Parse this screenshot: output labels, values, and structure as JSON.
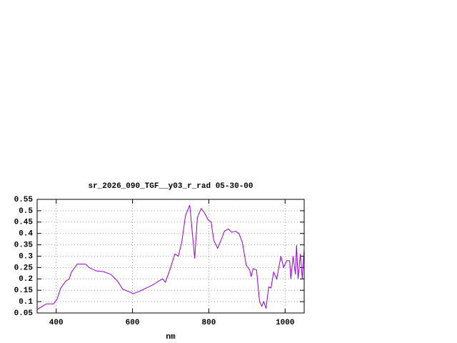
{
  "chart_data": {
    "type": "line",
    "title": "sr_2026_090_TGF__y03_r_rad 05-30-00",
    "x_label": "nm",
    "x": [
      350,
      374,
      393,
      402,
      412,
      425,
      434,
      440,
      455,
      477,
      486,
      505,
      524,
      543,
      561,
      574,
      589,
      602,
      617,
      636,
      655,
      668,
      679,
      686,
      698,
      711,
      720,
      729,
      739,
      750,
      757,
      763,
      770,
      780,
      789,
      798,
      806,
      813,
      823,
      832,
      841,
      851,
      860,
      870,
      879,
      888,
      898,
      907,
      911,
      916,
      925,
      933,
      939,
      944,
      950,
      957,
      963,
      970,
      978,
      989,
      996,
      1004,
      1012,
      1015,
      1021,
      1027,
      1030,
      1034,
      1040,
      1045,
      1050
    ],
    "series": [
      {
        "color": "#9400d3",
        "values": [
          0.065,
          0.09,
          0.09,
          0.11,
          0.16,
          0.19,
          0.2,
          0.23,
          0.265,
          0.265,
          0.25,
          0.235,
          0.232,
          0.22,
          0.19,
          0.155,
          0.145,
          0.135,
          0.145,
          0.16,
          0.175,
          0.19,
          0.2,
          0.185,
          0.24,
          0.31,
          0.3,
          0.36,
          0.48,
          0.525,
          0.4,
          0.29,
          0.47,
          0.51,
          0.49,
          0.46,
          0.45,
          0.37,
          0.335,
          0.37,
          0.41,
          0.42,
          0.405,
          0.41,
          0.4,
          0.36,
          0.26,
          0.24,
          0.21,
          0.245,
          0.24,
          0.1,
          0.08,
          0.1,
          0.07,
          0.165,
          0.16,
          0.23,
          0.2,
          0.3,
          0.25,
          0.28,
          0.28,
          0.2,
          0.3,
          0.22,
          0.35,
          0.2,
          0.31,
          0.2,
          0.34
        ]
      }
    ],
    "xlim": [
      350,
      1050
    ],
    "ylim": [
      0.05,
      0.55
    ],
    "xticks": [
      400,
      600,
      800,
      1000
    ],
    "yticks": [
      0.05,
      0.1,
      0.15,
      0.2,
      0.25,
      0.3,
      0.35,
      0.4,
      0.45,
      0.5,
      0.55
    ],
    "grid": true
  }
}
